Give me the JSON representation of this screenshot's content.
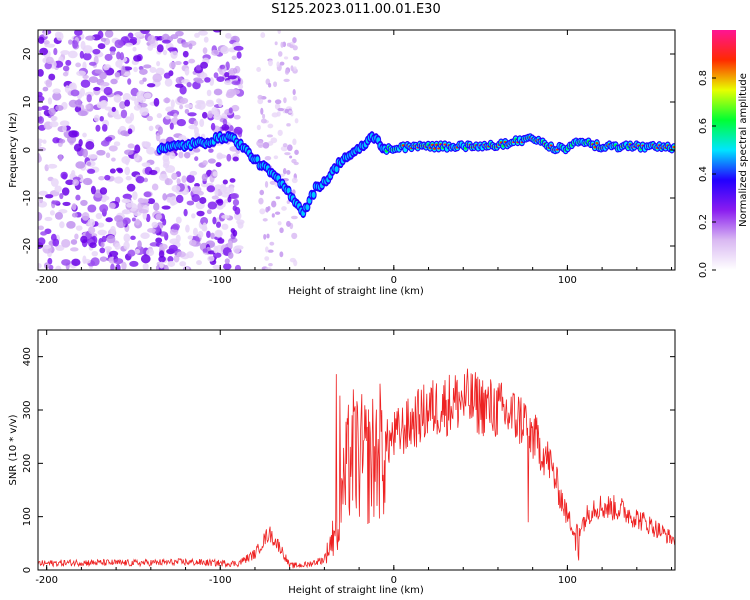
{
  "title": "S125.2023.011.00.01.E30",
  "chart_data": [
    {
      "type": "heatmap",
      "xlabel": "Height of straight line (km)",
      "ylabel": "Frequency (Hz)",
      "xlim": [
        -205,
        162
      ],
      "ylim": [
        -25,
        25
      ],
      "x_ticks": [
        -200,
        -100,
        0,
        100
      ],
      "y_ticks": [
        -20,
        -10,
        0,
        10,
        20
      ],
      "colorbar": {
        "label": "Normalized spectral amplitude",
        "range": [
          0,
          1
        ],
        "ticks": [
          "0.0",
          "0.2",
          "0.4",
          "0.6",
          "0.8"
        ],
        "colormap": [
          "#ffffff",
          "#d9b8f2",
          "#8a1cf0",
          "#2200ff",
          "#00e5ff",
          "#00ff33",
          "#e8ff00",
          "#ff2a00",
          "#ff1493"
        ]
      },
      "ridge": {
        "description_free_points_x": [
          -130,
          -110,
          -95,
          -88,
          -80,
          -70,
          -60,
          -52,
          -45,
          -38,
          -30,
          -20,
          -12,
          -5,
          0,
          20,
          40,
          60,
          80,
          90,
          100,
          105,
          120,
          140,
          160
        ],
        "points_y": [
          0.5,
          1.5,
          3,
          1,
          -2,
          -5,
          -9,
          -13,
          -8,
          -6,
          -2,
          0,
          3,
          0,
          0.5,
          0.8,
          0.7,
          1.0,
          2.5,
          0.5,
          0.3,
          2,
          0.7,
          0.7,
          0.5
        ]
      },
      "grid": false
    },
    {
      "type": "line",
      "xlabel": "Height of straight line (km)",
      "ylabel": "SNR (10 * v/v)",
      "xlim": [
        -205,
        162
      ],
      "ylim": [
        0,
        450
      ],
      "x_ticks": [
        -200,
        -100,
        0,
        100
      ],
      "y_ticks": [
        0,
        100,
        200,
        300,
        400
      ],
      "series_color": "#ee2222",
      "envelope_x": [
        -205,
        -180,
        -150,
        -120,
        -90,
        -80,
        -72,
        -65,
        -60,
        -50,
        -40,
        -33,
        -25,
        -15,
        0,
        20,
        40,
        60,
        75,
        90,
        100,
        105,
        115,
        130,
        150,
        162
      ],
      "envelope_y": [
        12,
        14,
        13,
        15,
        12,
        30,
        70,
        40,
        8,
        10,
        20,
        80,
        220,
        200,
        250,
        300,
        320,
        300,
        280,
        200,
        100,
        70,
        120,
        115,
        80,
        55
      ],
      "grid": false
    }
  ]
}
